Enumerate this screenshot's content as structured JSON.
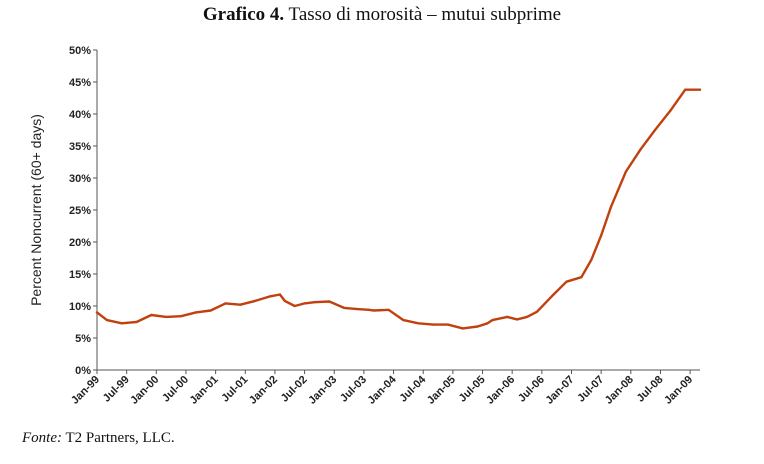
{
  "title_lead": "Grafico 4.",
  "title_rest": " Tasso di morosità – mutui subprime",
  "source_label": "Fonte:",
  "source_text": " T2 Partners, LLC.",
  "colors": {
    "line": "#c0410e",
    "axis": "#555555",
    "grid": "#bdbdbd"
  },
  "chart_data": {
    "type": "line",
    "ylabel": "Percent Noncurrent (60+ days)",
    "xlabel": "",
    "ylim": [
      0,
      50
    ],
    "yticks": [
      0,
      5,
      10,
      15,
      20,
      25,
      30,
      35,
      40,
      45,
      50
    ],
    "ytick_labels": [
      "0%",
      "5%",
      "10%",
      "15%",
      "20%",
      "25%",
      "30%",
      "35%",
      "40%",
      "45%",
      "50%"
    ],
    "grid": false,
    "legend": "none",
    "x_start": "Jan-99",
    "x_end": "Mar-09",
    "x_tick_labels": [
      "Jan-99",
      "Jul-99",
      "Jan-00",
      "Jul-00",
      "Jan-01",
      "Jul-01",
      "Jan-02",
      "Jul-02",
      "Jan-03",
      "Jul-03",
      "Jan-04",
      "Jul-04",
      "Jan-05",
      "Jul-05",
      "Jan-06",
      "Jul-06",
      "Jan-07",
      "Jul-07",
      "Jan-08",
      "Jul-08",
      "Jan-09"
    ],
    "series": [
      {
        "x": [
          "Jan-99",
          "Mar-99",
          "Jun-99",
          "Sep-99",
          "Dec-99",
          "Mar-00",
          "Jun-00",
          "Sep-00",
          "Dec-00",
          "Mar-01",
          "Jun-01",
          "Sep-01",
          "Dec-01",
          "Feb-02",
          "Mar-02",
          "May-02",
          "Jul-02",
          "Sep-02",
          "Dec-02",
          "Mar-03",
          "Jun-03",
          "Aug-03",
          "Sep-03",
          "Dec-03",
          "Mar-04",
          "Jun-04",
          "Sep-04",
          "Dec-04",
          "Mar-05",
          "Jun-05",
          "Aug-05",
          "Sep-05",
          "Dec-05",
          "Feb-06",
          "Apr-06",
          "Jun-06",
          "Sep-06",
          "Dec-06",
          "Mar-07",
          "May-07",
          "Jul-07",
          "Sep-07",
          "Dec-07",
          "Mar-08",
          "Jun-08",
          "Sep-08",
          "Dec-08",
          "Mar-09"
        ],
        "values": [
          9.0,
          7.8,
          7.3,
          7.5,
          8.6,
          8.3,
          8.4,
          9.0,
          9.3,
          10.4,
          10.2,
          10.8,
          11.5,
          11.8,
          10.8,
          10.0,
          10.4,
          10.6,
          10.7,
          9.7,
          9.5,
          9.4,
          9.3,
          9.4,
          7.8,
          7.3,
          7.1,
          7.1,
          6.5,
          6.8,
          7.3,
          7.8,
          8.3,
          7.9,
          8.3,
          9.1,
          11.5,
          13.8,
          14.5,
          17.2,
          21.0,
          25.5,
          31.0,
          34.5,
          37.6,
          40.5,
          43.8,
          43.8
        ]
      }
    ]
  }
}
